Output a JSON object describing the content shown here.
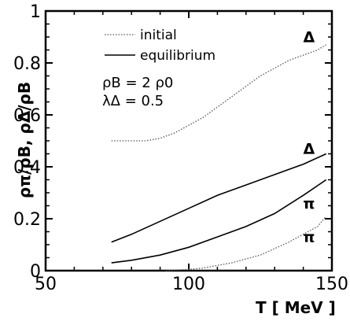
{
  "chart_data": {
    "type": "line",
    "xlabel": "T [ MeV ]",
    "ylabel": "ρπ/ρB, ρΔ/ρB",
    "xlim": [
      50,
      150
    ],
    "ylim": [
      0,
      1
    ],
    "x_ticks": [
      "50",
      "100",
      "150"
    ],
    "y_ticks": [
      "0",
      "0.2",
      "0.4",
      "0.6",
      "0.8",
      "1"
    ],
    "legend": {
      "placement": "top-left",
      "entries": [
        {
          "label": "initial",
          "style": "dotted"
        },
        {
          "label": "equilibrium",
          "style": "solid"
        }
      ]
    },
    "parameters": [
      "ρB = 2 ρ0",
      "λΔ = 0.5"
    ],
    "series": [
      {
        "style": "dotted",
        "label": "Δ",
        "x": [
          73,
          80,
          85,
          90,
          95,
          100,
          105,
          110,
          115,
          120,
          125,
          130,
          135,
          140,
          145,
          148
        ],
        "y": [
          0.5,
          0.5,
          0.5,
          0.51,
          0.53,
          0.56,
          0.59,
          0.63,
          0.67,
          0.71,
          0.75,
          0.78,
          0.81,
          0.83,
          0.85,
          0.87
        ]
      },
      {
        "style": "solid",
        "label": "Δ",
        "x": [
          73,
          80,
          90,
          100,
          110,
          120,
          130,
          140,
          148
        ],
        "y": [
          0.11,
          0.14,
          0.19,
          0.24,
          0.29,
          0.33,
          0.37,
          0.41,
          0.45
        ]
      },
      {
        "style": "solid",
        "label": "π",
        "x": [
          73,
          80,
          90,
          100,
          110,
          120,
          130,
          140,
          148
        ],
        "y": [
          0.03,
          0.04,
          0.06,
          0.09,
          0.13,
          0.17,
          0.22,
          0.29,
          0.35
        ]
      },
      {
        "style": "dotted",
        "label": "π",
        "x": [
          92,
          100,
          105,
          110,
          115,
          120,
          125,
          130,
          135,
          140,
          145,
          148
        ],
        "y": [
          0.0,
          0.005,
          0.01,
          0.02,
          0.03,
          0.045,
          0.06,
          0.085,
          0.11,
          0.14,
          0.17,
          0.21
        ]
      }
    ]
  }
}
